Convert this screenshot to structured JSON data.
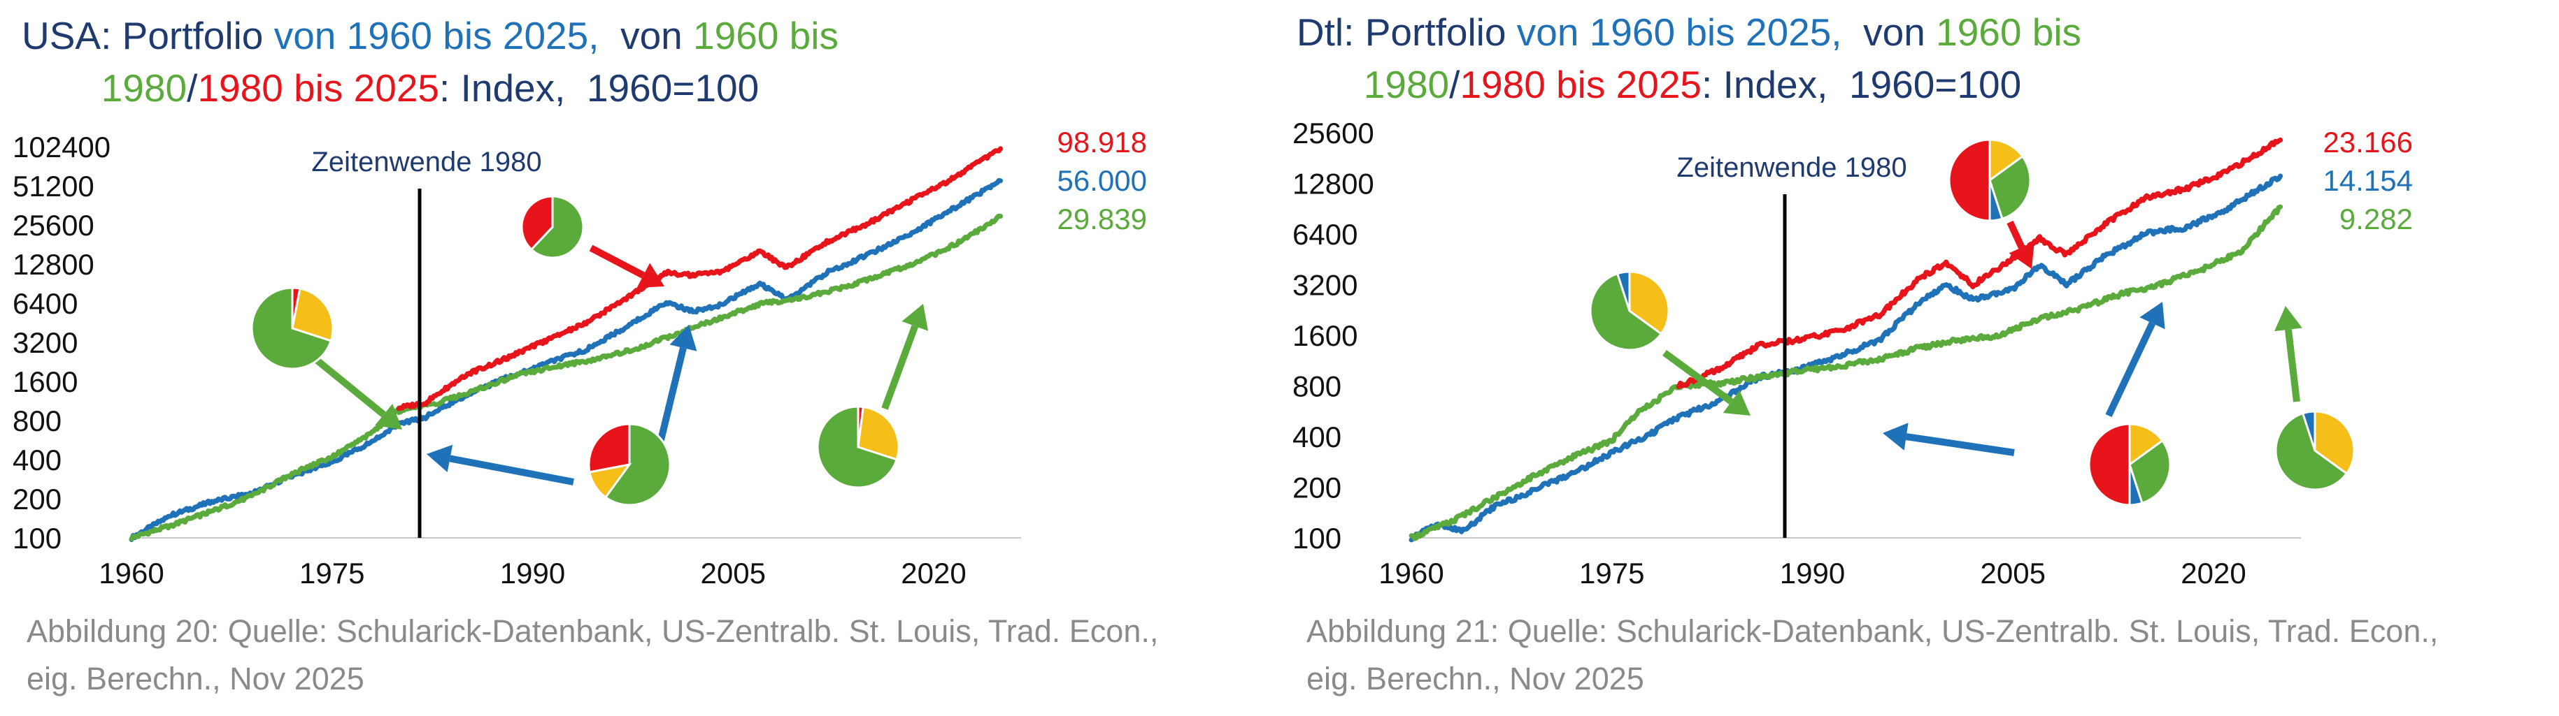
{
  "colors": {
    "navy": "#1f3a6e",
    "blue": "#1f72b8",
    "green": "#5aaa3c",
    "red": "#e8141b",
    "yellow": "#f5be18",
    "caption": "#8a8a8a"
  },
  "chart_data": [
    {
      "type": "line",
      "yscale": "log2",
      "title_parts": [
        {
          "text": "USA: Portfolio ",
          "color": "navy"
        },
        {
          "text": "von 1960 bis 2025,",
          "color": "blue"
        },
        {
          "text": "  von ",
          "color": "navy"
        },
        {
          "text": "1960 bis",
          "color": "green"
        },
        {
          "text": "1980",
          "color": "green"
        },
        {
          "text": "/",
          "color": "navy"
        },
        {
          "text": "1980 bis 2025",
          "color": "red"
        },
        {
          "text": ": Index,  1960=100",
          "color": "navy"
        }
      ],
      "xticks": [
        "1960",
        "1975",
        "1990",
        "2005",
        "2020"
      ],
      "yticks": [
        "102400",
        "51200",
        "25600",
        "12800",
        "6400",
        "3200",
        "1600",
        "800",
        "400",
        "200",
        "100"
      ],
      "ylim": [
        100,
        102400
      ],
      "xlim": [
        1960,
        2025
      ],
      "annotation": "Zeitenwende 1980",
      "end_labels": [
        {
          "value": "98.918",
          "color": "red"
        },
        {
          "value": "56.000",
          "color": "blue"
        },
        {
          "value": "29.839",
          "color": "green"
        }
      ],
      "series": [
        {
          "name": "Portfolio 1960 bis 2025",
          "color": "blue",
          "x": [
            1960,
            1963,
            1966,
            1969,
            1972,
            1975,
            1978,
            1980,
            1982,
            1985,
            1988,
            1991,
            1994,
            1997,
            2000,
            2002,
            2004,
            2007,
            2009,
            2012,
            2015,
            2018,
            2021,
            2025
          ],
          "y": [
            100,
            150,
            190,
            220,
            300,
            380,
            550,
            750,
            850,
            1250,
            1700,
            2200,
            2800,
            4200,
            6500,
            5500,
            6200,
            9000,
            6800,
            11000,
            15000,
            21000,
            32000,
            56000
          ]
        },
        {
          "name": "Portfolio 1960 bis 1980",
          "color": "green",
          "x": [
            1960,
            1963,
            1966,
            1969,
            1972,
            1975,
            1978,
            1980
          ],
          "y": [
            100,
            125,
            160,
            210,
            310,
            420,
            640,
            1000
          ]
        },
        {
          "name": "Portfolio 1980 bis 2025 (green)",
          "color": "green",
          "x": [
            1980,
            1983,
            1986,
            1989,
            1992,
            1995,
            1998,
            2001,
            2004,
            2007,
            2010,
            2013,
            2016,
            2019,
            2022,
            2025
          ],
          "y": [
            950,
            1100,
            1400,
            1800,
            2100,
            2400,
            2900,
            3800,
            4900,
            6300,
            7000,
            8300,
            10500,
            13500,
            19000,
            29839
          ]
        },
        {
          "name": "Portfolio 1980 bis 2025 (red)",
          "color": "red",
          "x": [
            1980,
            1982,
            1985,
            1988,
            1991,
            1994,
            1997,
            2000,
            2002,
            2004,
            2007,
            2009,
            2012,
            2015,
            2018,
            2021,
            2025
          ],
          "y": [
            1000,
            1100,
            1800,
            2400,
            3300,
            4500,
            7000,
            11000,
            10500,
            11000,
            16000,
            12000,
            19000,
            26000,
            38000,
            55000,
            98918
          ]
        }
      ]
    },
    {
      "type": "line",
      "yscale": "log2",
      "title_parts": [
        {
          "text": "Dtl: Portfolio ",
          "color": "navy"
        },
        {
          "text": "von 1960 bis 2025,",
          "color": "blue"
        },
        {
          "text": "  von ",
          "color": "navy"
        },
        {
          "text": "1960 bis",
          "color": "green"
        },
        {
          "text": "1980",
          "color": "green"
        },
        {
          "text": "/",
          "color": "navy"
        },
        {
          "text": "1980 bis 2025",
          "color": "red"
        },
        {
          "text": ": Index,  1960=100",
          "color": "navy"
        }
      ],
      "xticks": [
        "1960",
        "1975",
        "1990",
        "2005",
        "2020"
      ],
      "yticks": [
        "25600",
        "12800",
        "6400",
        "3200",
        "1600",
        "800",
        "400",
        "200",
        "100"
      ],
      "ylim": [
        100,
        25600
      ],
      "xlim": [
        1960,
        2025
      ],
      "annotation": "Zeitenwende 1980",
      "end_labels": [
        {
          "value": "23.166",
          "color": "red"
        },
        {
          "value": "14.154",
          "color": "blue"
        },
        {
          "value": "9.282",
          "color": "green"
        }
      ],
      "series": [
        {
          "name": "Portfolio 1960 bis 2025",
          "color": "blue",
          "x": [
            1960,
            1962,
            1964,
            1966,
            1969,
            1972,
            1975,
            1978,
            1980,
            1983,
            1986,
            1989,
            1992,
            1995,
            1998,
            2000,
            2002,
            2005,
            2007,
            2009,
            2012,
            2015,
            2018,
            2021,
            2025
          ],
          "y": [
            100,
            120,
            110,
            150,
            190,
            240,
            320,
            420,
            520,
            650,
            900,
            1000,
            1200,
            1500,
            2500,
            3200,
            2600,
            3000,
            4200,
            3200,
            4800,
            6500,
            7000,
            9000,
            14154
          ]
        },
        {
          "name": "Portfolio 1960 bis 1980",
          "color": "green",
          "x": [
            1960,
            1963,
            1966,
            1969,
            1972,
            1975,
            1977,
            1980
          ],
          "y": [
            100,
            125,
            170,
            230,
            300,
            380,
            560,
            800
          ]
        },
        {
          "name": "Portfolio 1980 bis 2025 (green)",
          "color": "green",
          "x": [
            1980,
            1983,
            1986,
            1989,
            1992,
            1995,
            1998,
            2001,
            2004,
            2007,
            2010,
            2013,
            2016,
            2019,
            2022,
            2025
          ],
          "y": [
            800,
            830,
            900,
            980,
            1050,
            1150,
            1350,
            1500,
            1600,
            2000,
            2300,
            2800,
            3200,
            3900,
            5000,
            9282
          ]
        },
        {
          "name": "Portfolio 1980 bis 2025 (red)",
          "color": "red",
          "x": [
            1980,
            1983,
            1986,
            1989,
            1992,
            1995,
            1998,
            2000,
            2002,
            2004,
            2007,
            2009,
            2012,
            2015,
            2018,
            2021,
            2025
          ],
          "y": [
            800,
            1000,
            1400,
            1500,
            1700,
            2100,
            3500,
            4300,
            3200,
            4000,
            6000,
            4800,
            7500,
            10500,
            12000,
            15000,
            23166
          ]
        }
      ]
    }
  ],
  "captions": [
    {
      "line1": "Abbildung 20: Quelle: Schularick-Datenbank,  US-Zentralb. St. Louis, Trad. Econ.,",
      "line2": "eig. Berechn., Nov 2025"
    },
    {
      "line1": "Abbildung 21: Quelle: Schularick-Datenbank,  US-Zentralb. St. Louis, Trad. Econ.,",
      "line2": "eig. Berechn., Nov 2025"
    }
  ]
}
